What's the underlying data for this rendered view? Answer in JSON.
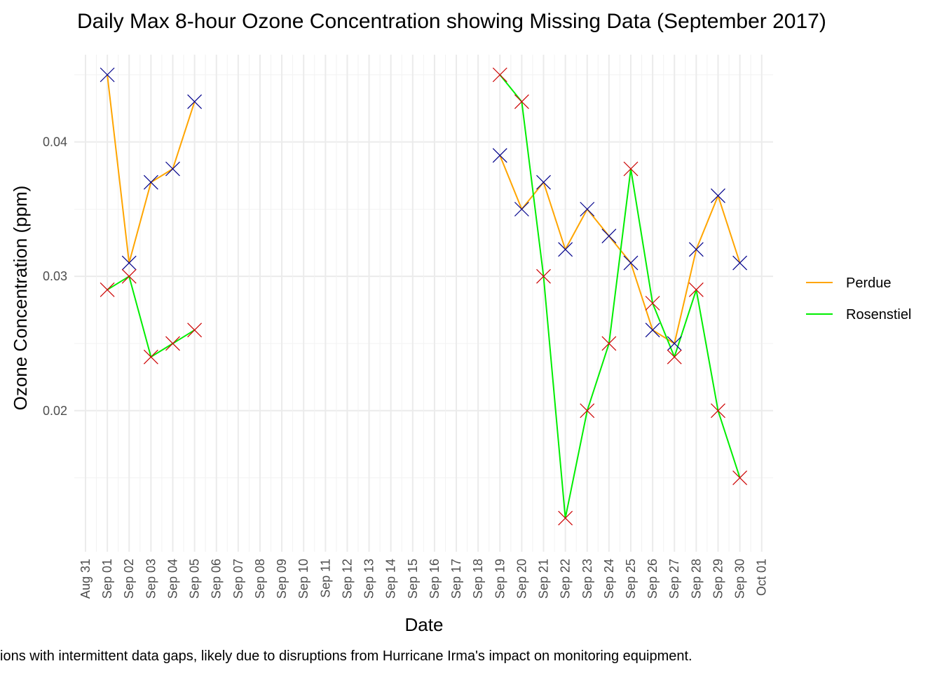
{
  "chart_data": {
    "type": "line",
    "title": "Daily Max 8-hour Ozone Concentration showing Missing Data (September 2017)",
    "xlabel": "Date",
    "ylabel": "Ozone Concentration (ppm)",
    "caption": "ions with intermittent data gaps, likely due to disruptions from Hurricane Irma's impact on monitoring equipment.",
    "x_ticks": [
      "Aug 31",
      "Sep 01",
      "Sep 02",
      "Sep 03",
      "Sep 04",
      "Sep 05",
      "Sep 06",
      "Sep 07",
      "Sep 08",
      "Sep 09",
      "Sep 10",
      "Sep 11",
      "Sep 12",
      "Sep 13",
      "Sep 14",
      "Sep 15",
      "Sep 16",
      "Sep 17",
      "Sep 18",
      "Sep 19",
      "Sep 20",
      "Sep 21",
      "Sep 22",
      "Sep 23",
      "Sep 24",
      "Sep 25",
      "Sep 26",
      "Sep 27",
      "Sep 28",
      "Sep 29",
      "Sep 30",
      "Oct 01"
    ],
    "y_ticks": [
      "0.02",
      "0.03",
      "0.04"
    ],
    "ylim": [
      0.0095,
      0.0465
    ],
    "grid": true,
    "legend_position": "right",
    "series": [
      {
        "name": "Perdue",
        "color": "#FFA500",
        "marker_color": "#00008B",
        "points": [
          [
            "Sep 01",
            0.045
          ],
          [
            "Sep 02",
            0.031
          ],
          [
            "Sep 03",
            0.037
          ],
          [
            "Sep 04",
            0.038
          ],
          [
            "Sep 05",
            0.043
          ],
          [
            "Sep 19",
            0.039
          ],
          [
            "Sep 20",
            0.035
          ],
          [
            "Sep 21",
            0.037
          ],
          [
            "Sep 22",
            0.032
          ],
          [
            "Sep 23",
            0.035
          ],
          [
            "Sep 24",
            0.033
          ],
          [
            "Sep 25",
            0.031
          ],
          [
            "Sep 26",
            0.026
          ],
          [
            "Sep 27",
            0.025
          ],
          [
            "Sep 28",
            0.032
          ],
          [
            "Sep 29",
            0.036
          ],
          [
            "Sep 30",
            0.031
          ]
        ]
      },
      {
        "name": "Rosenstiel",
        "color": "#00EE00",
        "marker_color": "#CC0000",
        "points": [
          [
            "Sep 01",
            0.029
          ],
          [
            "Sep 02",
            0.03
          ],
          [
            "Sep 03",
            0.024
          ],
          [
            "Sep 04",
            0.025
          ],
          [
            "Sep 05",
            0.026
          ],
          [
            "Sep 19",
            0.045
          ],
          [
            "Sep 20",
            0.043
          ],
          [
            "Sep 21",
            0.03
          ],
          [
            "Sep 22",
            0.012
          ],
          [
            "Sep 23",
            0.02
          ],
          [
            "Sep 24",
            0.025
          ],
          [
            "Sep 25",
            0.038
          ],
          [
            "Sep 26",
            0.028
          ],
          [
            "Sep 27",
            0.024
          ],
          [
            "Sep 28",
            0.029
          ],
          [
            "Sep 29",
            0.02
          ],
          [
            "Sep 30",
            0.015
          ]
        ]
      }
    ]
  }
}
